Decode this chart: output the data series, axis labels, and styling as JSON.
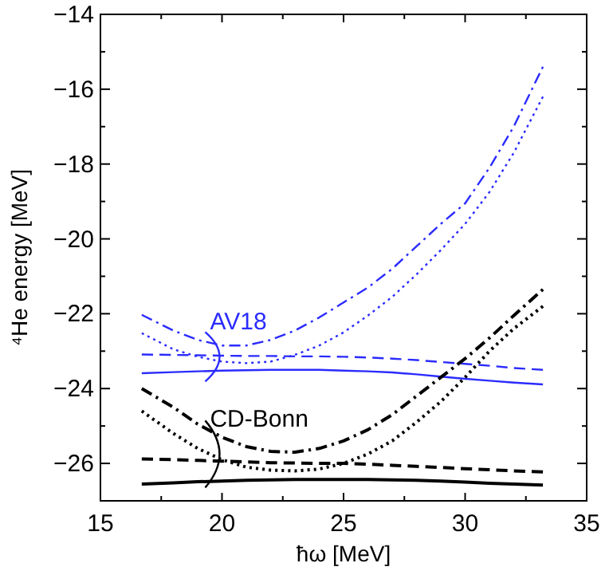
{
  "chart_data": {
    "type": "line",
    "xlabel": "ħω [MeV]",
    "ylabel": "⁴He energy  [MeV]",
    "xlim": [
      15,
      35
    ],
    "ylim": [
      -27,
      -14
    ],
    "xticks": [
      15,
      {
        "value": 17.5,
        "label": null
      },
      20,
      {
        "value": 22.5,
        "label": null
      },
      25,
      {
        "value": 27.5,
        "label": null
      },
      30,
      {
        "value": 32.5,
        "label": null
      },
      35
    ],
    "yticks": [
      {
        "value": -27,
        "label": null
      },
      -26,
      {
        "value": -25,
        "label": null
      },
      -24,
      {
        "value": -23,
        "label": null
      },
      -22,
      {
        "value": -21,
        "label": null
      },
      -20,
      {
        "value": -19,
        "label": null
      },
      -18,
      {
        "value": -17,
        "label": null
      },
      -16,
      {
        "value": -15,
        "label": null
      },
      -14
    ],
    "x": [
      16.7,
      18,
      19,
      20,
      21,
      22,
      23,
      24,
      25,
      26,
      27,
      28,
      29,
      30,
      31,
      32,
      33.2
    ],
    "series": [
      {
        "color": "#2b2bff",
        "line_style": "solid",
        "values": [
          -23.59,
          -23.56,
          -23.54,
          -23.52,
          -23.51,
          -23.5,
          -23.5,
          -23.5,
          -23.52,
          -23.54,
          -23.57,
          -23.62,
          -23.68,
          -23.74,
          -23.79,
          -23.84,
          -23.89
        ]
      },
      {
        "color": "#2b2bff",
        "line_style": "dashed",
        "values": [
          -23.09,
          -23.1,
          -23.11,
          -23.12,
          -23.13,
          -23.13,
          -23.14,
          -23.14,
          -23.15,
          -23.17,
          -23.2,
          -23.24,
          -23.29,
          -23.34,
          -23.39,
          -23.45,
          -23.5
        ]
      },
      {
        "color": "#2b2bff",
        "line_style": "dotted",
        "values": [
          -22.52,
          -22.95,
          -23.15,
          -23.28,
          -23.32,
          -23.28,
          -23.1,
          -22.85,
          -22.5,
          -22.05,
          -21.55,
          -20.95,
          -20.3,
          -19.6,
          -18.75,
          -17.7,
          -16.2
        ]
      },
      {
        "color": "#2b2bff",
        "line_style": "dashdot",
        "values": [
          -22.03,
          -22.45,
          -22.7,
          -22.85,
          -22.85,
          -22.7,
          -22.45,
          -22.1,
          -21.7,
          -21.3,
          -20.8,
          -20.2,
          -19.6,
          -19.05,
          -18.1,
          -17.0,
          -15.4
        ]
      },
      {
        "color": "#000000",
        "line_style": "solid",
        "values": [
          -26.55,
          -26.52,
          -26.49,
          -26.47,
          -26.45,
          -26.44,
          -26.43,
          -26.43,
          -26.43,
          -26.43,
          -26.44,
          -26.45,
          -26.47,
          -26.5,
          -26.53,
          -26.55,
          -26.58
        ]
      },
      {
        "color": "#000000",
        "line_style": "dashed",
        "values": [
          -25.88,
          -25.9,
          -25.92,
          -25.94,
          -25.96,
          -25.98,
          -25.99,
          -26.0,
          -26.0,
          -26.02,
          -26.05,
          -26.08,
          -26.11,
          -26.14,
          -26.17,
          -26.2,
          -26.23
        ]
      },
      {
        "color": "#000000",
        "line_style": "dotted",
        "values": [
          -24.6,
          -25.2,
          -25.6,
          -25.9,
          -26.1,
          -26.18,
          -26.2,
          -26.15,
          -26.0,
          -25.75,
          -25.4,
          -24.9,
          -24.35,
          -23.7,
          -23.0,
          -22.4,
          -21.8
        ]
      },
      {
        "color": "#000000",
        "line_style": "dashdot",
        "values": [
          -24.0,
          -24.5,
          -24.95,
          -25.3,
          -25.55,
          -25.68,
          -25.7,
          -25.6,
          -25.4,
          -25.1,
          -24.7,
          -24.2,
          -23.7,
          -23.2,
          -22.65,
          -22.05,
          -21.35
        ]
      }
    ],
    "annotations": [
      {
        "text": "AV18",
        "x": 19.9,
        "y": -23.15
      },
      {
        "text": "CD-Bonn",
        "x": 19.9,
        "y": -25.75
      }
    ],
    "grid": false
  }
}
